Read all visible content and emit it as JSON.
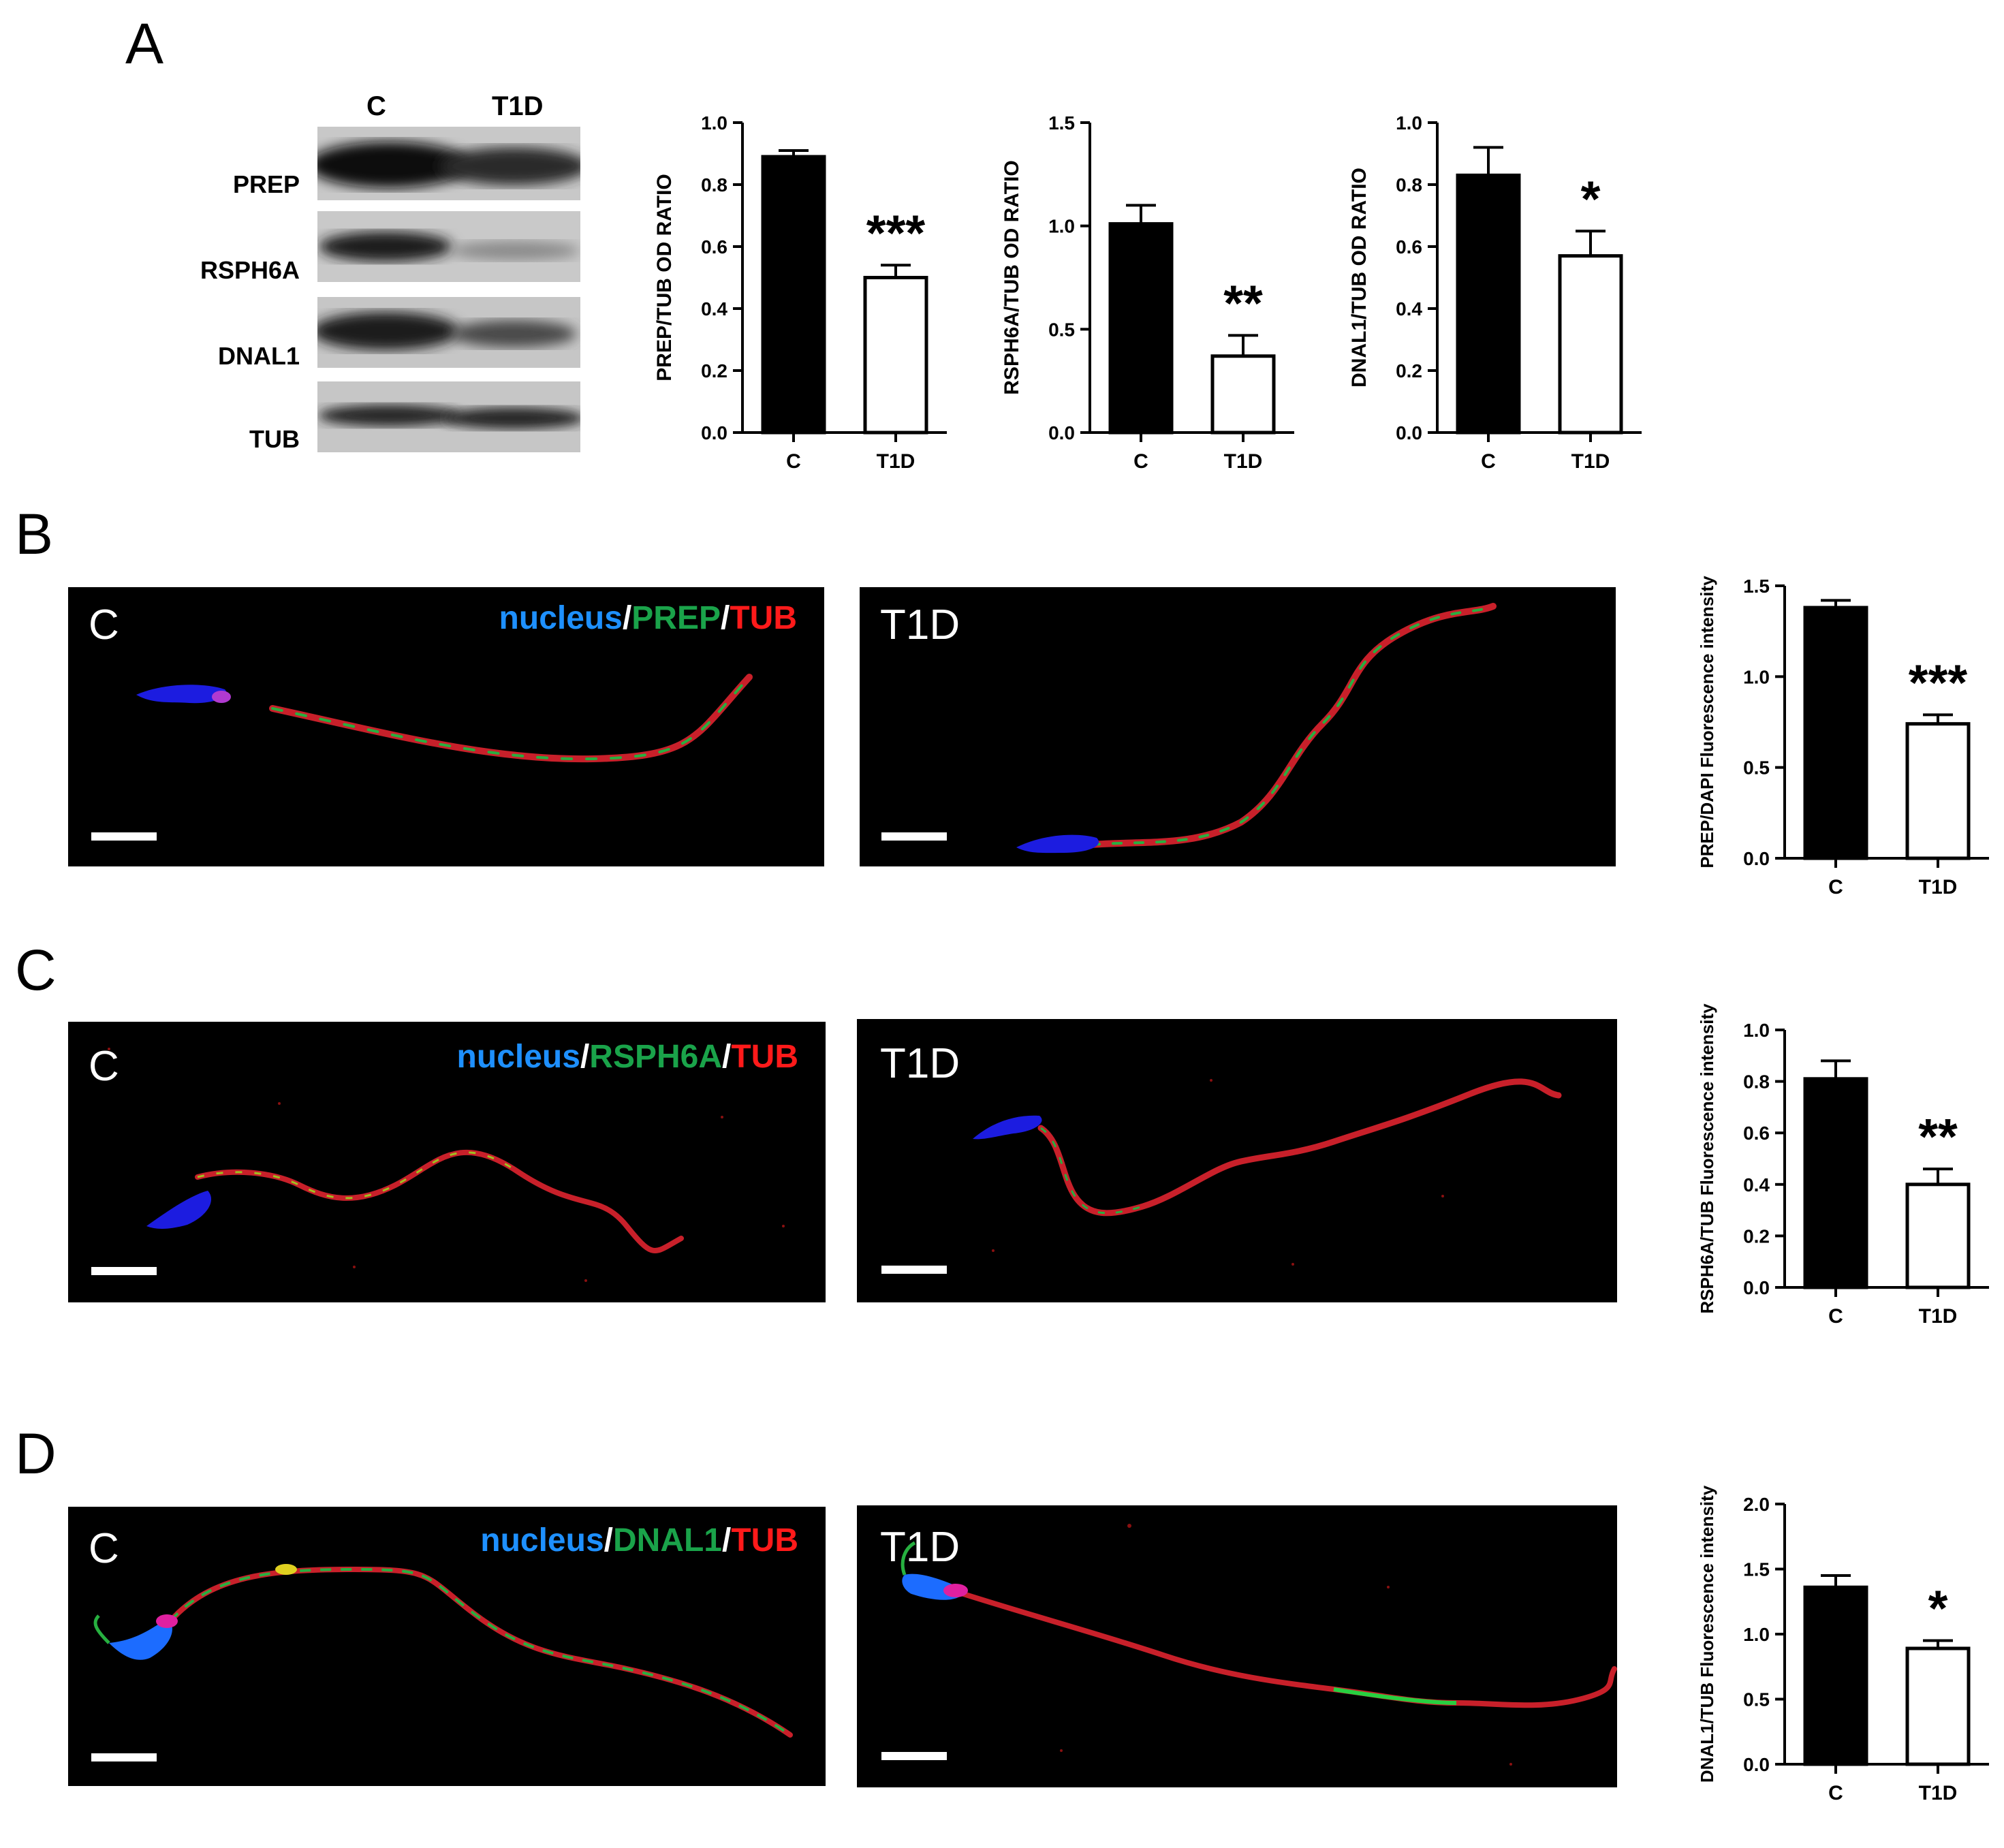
{
  "panel_letters": {
    "a": "A",
    "b": "B",
    "c": "C",
    "d": "D"
  },
  "blot": {
    "lanes": [
      "C",
      "T1D"
    ],
    "labels": [
      "PREP",
      "RSPH6A",
      "DNAL1",
      "TUB"
    ]
  },
  "fluorescence": {
    "conditions": {
      "c": "C",
      "t1d": "T1D"
    },
    "legend_b": {
      "nucleus": "nucleus",
      "sep1": "/",
      "protein": "PREP",
      "sep2": "/",
      "tub": "TUB"
    },
    "legend_c": {
      "nucleus": "nucleus",
      "sep1": "/",
      "protein": "RSPH6A",
      "sep2": "/",
      "tub": "TUB"
    },
    "legend_d": {
      "nucleus": "nucleus",
      "sep1": "/",
      "protein": "DNAL1",
      "sep2": "/",
      "tub": "TUB"
    },
    "colors": {
      "nucleus": "#1e90ff",
      "protein": "#1aa34a",
      "tub": "#ff1a1a",
      "sep": "#ffffff"
    }
  },
  "chart_data": [
    {
      "id": "a1",
      "type": "bar",
      "categories": [
        "C",
        "T1D"
      ],
      "values": [
        0.89,
        0.5
      ],
      "errors": [
        0.02,
        0.04
      ],
      "fills": [
        "#000000",
        "#ffffff"
      ],
      "ylabel": "PREP/TUB OD RATIO",
      "ylim": [
        0,
        1.0
      ],
      "yticks": [
        "0.0",
        "0.2",
        "0.4",
        "0.6",
        "0.8",
        "1.0"
      ],
      "significance": "***"
    },
    {
      "id": "a2",
      "type": "bar",
      "categories": [
        "C",
        "T1D"
      ],
      "values": [
        1.01,
        0.37
      ],
      "errors": [
        0.09,
        0.1
      ],
      "fills": [
        "#000000",
        "#ffffff"
      ],
      "ylabel": "RSPH6A/TUB OD RATIO",
      "ylim": [
        0,
        1.5
      ],
      "yticks": [
        "0.0",
        "0.5",
        "1.0",
        "1.5"
      ],
      "significance": "**"
    },
    {
      "id": "a3",
      "type": "bar",
      "categories": [
        "C",
        "T1D"
      ],
      "values": [
        0.83,
        0.57
      ],
      "errors": [
        0.09,
        0.08
      ],
      "fills": [
        "#000000",
        "#ffffff"
      ],
      "ylabel": "DNAL1/TUB OD RATIO",
      "ylim": [
        0,
        1.0
      ],
      "yticks": [
        "0.0",
        "0.2",
        "0.4",
        "0.6",
        "0.8",
        "1.0"
      ],
      "significance": "*"
    },
    {
      "id": "b",
      "type": "bar",
      "categories": [
        "C",
        "T1D"
      ],
      "values": [
        1.38,
        0.74
      ],
      "errors": [
        0.04,
        0.05
      ],
      "fills": [
        "#000000",
        "#ffffff"
      ],
      "ylabel": "PREP/DAPI Fluorescence intensity",
      "ylim": [
        0,
        1.5
      ],
      "yticks": [
        "0.0",
        "0.5",
        "1.0",
        "1.5"
      ],
      "significance": "***"
    },
    {
      "id": "c",
      "type": "bar",
      "categories": [
        "C",
        "T1D"
      ],
      "values": [
        0.81,
        0.4
      ],
      "errors": [
        0.07,
        0.06
      ],
      "fills": [
        "#000000",
        "#ffffff"
      ],
      "ylabel": "RSPH6A/TUB Fluorescence intensity",
      "ylim": [
        0,
        1.0
      ],
      "yticks": [
        "0.0",
        "0.2",
        "0.4",
        "0.6",
        "0.8",
        "1.0"
      ],
      "significance": "**"
    },
    {
      "id": "d",
      "type": "bar",
      "categories": [
        "C",
        "T1D"
      ],
      "values": [
        1.36,
        0.89
      ],
      "errors": [
        0.09,
        0.06
      ],
      "fills": [
        "#000000",
        "#ffffff"
      ],
      "ylabel": "DNAL1/TUB Fluorescence intensity",
      "ylim": [
        0,
        2.0
      ],
      "yticks": [
        "0.0",
        "0.5",
        "1.0",
        "1.5",
        "2.0"
      ],
      "significance": "*"
    }
  ]
}
